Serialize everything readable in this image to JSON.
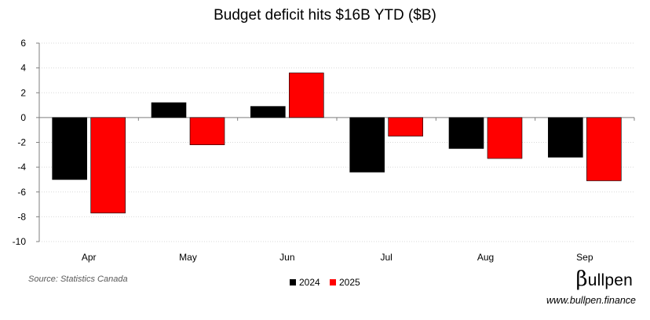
{
  "chart_data": {
    "type": "bar",
    "title": "Budget deficit hits $16B YTD ($B)",
    "categories": [
      "Apr",
      "May",
      "Jun",
      "Jul",
      "Aug",
      "Sep"
    ],
    "series": [
      {
        "name": "2024",
        "color": "#000000",
        "values": [
          -5.0,
          1.2,
          0.9,
          -4.4,
          -2.5,
          -3.2
        ]
      },
      {
        "name": "2025",
        "color": "#ff0000",
        "values": [
          -7.7,
          -2.2,
          3.6,
          -1.5,
          -3.3,
          -5.1
        ]
      }
    ],
    "ylim": [
      -10,
      6
    ],
    "yticks": [
      6,
      4,
      2,
      0,
      -2,
      -4,
      -6,
      -8,
      -10
    ],
    "grid": true,
    "legend": "bottom-center",
    "xlabel": "",
    "ylabel": ""
  },
  "footer": {
    "source": "Source: Statistics Canada",
    "brand_symbol": "β",
    "brand_name": "ullpen",
    "website": "www.bullpen.finance"
  }
}
